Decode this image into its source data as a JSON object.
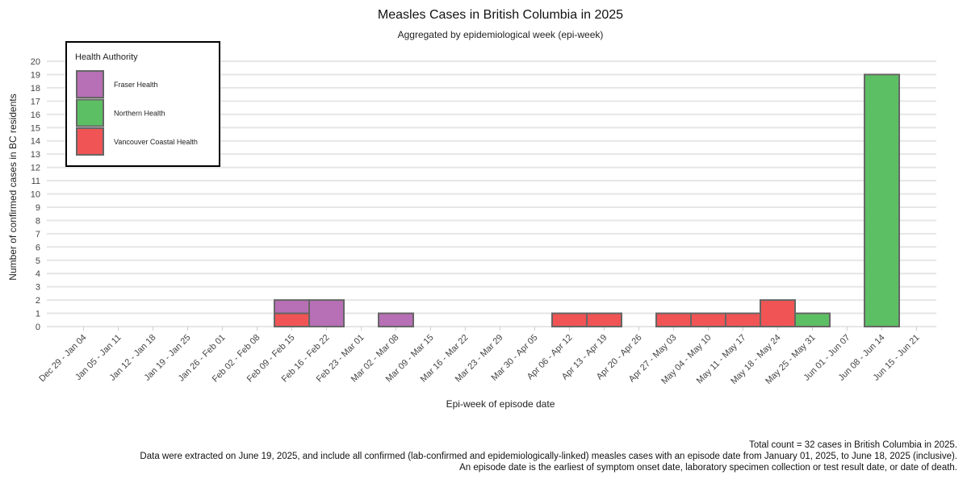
{
  "chart_data": {
    "type": "bar",
    "stacked": true,
    "title": "Measles Cases in British Columbia in 2025",
    "subtitle": "Aggregated by epidemiological week (epi-week)",
    "xlabel": "Epi-week of episode date",
    "ylabel": "Number of confirmed cases in BC residents",
    "ylim": [
      0,
      20
    ],
    "yticks": [
      0,
      1,
      2,
      3,
      4,
      5,
      6,
      7,
      8,
      9,
      10,
      11,
      12,
      13,
      14,
      15,
      16,
      17,
      18,
      19,
      20
    ],
    "grid": true,
    "legend": {
      "title": "Health Authority",
      "placement": "top-left"
    },
    "categories": [
      "Dec 29 - Jan 04",
      "Jan 05 - Jan 11",
      "Jan 12 - Jan 18",
      "Jan 19 - Jan 25",
      "Jan 26 - Feb 01",
      "Feb 02 - Feb 08",
      "Feb 09 - Feb 15",
      "Feb 16 - Feb 22",
      "Feb 23 - Mar 01",
      "Mar 02 - Mar 08",
      "Mar 09 - Mar 15",
      "Mar 16 - Mar 22",
      "Mar 23 - Mar 29",
      "Mar 30 - Apr 05",
      "Apr 06 - Apr 12",
      "Apr 13 - Apr 19",
      "Apr 20 - Apr 26",
      "Apr 27 - May 03",
      "May 04 - May 10",
      "May 11 - May 17",
      "May 18 - May 24",
      "May 25 - May 31",
      "Jun 01 - Jun 07",
      "Jun 08 - Jun 14",
      "Jun 15 - Jun 21"
    ],
    "series": [
      {
        "name": "Vancouver Coastal Health",
        "color": "#f05454",
        "values": [
          0,
          0,
          0,
          0,
          0,
          0,
          1,
          0,
          0,
          0,
          0,
          0,
          0,
          0,
          1,
          1,
          0,
          1,
          1,
          1,
          2,
          0,
          0,
          0,
          0
        ]
      },
      {
        "name": "Fraser Health",
        "color": "#b76fb5",
        "values": [
          0,
          0,
          0,
          0,
          0,
          0,
          1,
          2,
          0,
          1,
          0,
          0,
          0,
          0,
          0,
          0,
          0,
          0,
          0,
          0,
          0,
          0,
          0,
          0,
          0
        ]
      },
      {
        "name": "Northern Health",
        "color": "#5dbf63",
        "values": [
          0,
          0,
          0,
          0,
          0,
          0,
          0,
          0,
          0,
          0,
          0,
          0,
          0,
          0,
          0,
          0,
          0,
          0,
          0,
          0,
          0,
          1,
          0,
          19,
          0
        ]
      }
    ],
    "legend_order": [
      "Fraser Health",
      "Northern Health",
      "Vancouver Coastal Health"
    ]
  },
  "footnotes": {
    "line1": "Total count = 32 cases in British Columbia in 2025.",
    "line2": "Data were extracted on June 19, 2025, and include all confirmed (lab-confirmed and epidemiologically-linked) measles cases with an episode date from January 01, 2025, to June 18, 2025 (inclusive).",
    "line3": "An episode date is the earliest of symptom onset date, laboratory specimen collection or test result date, or date of death."
  }
}
